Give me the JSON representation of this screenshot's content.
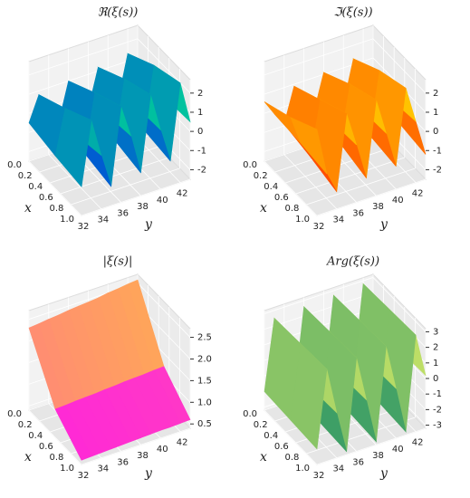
{
  "chart_data": [
    {
      "type": "surface",
      "title": "ℜ(ξ(s))",
      "x_label": "x",
      "y_label": "y",
      "xlim": [
        0,
        1
      ],
      "ylim": [
        32,
        43
      ],
      "zlim": [
        -2.5,
        2.7
      ],
      "xticks": [
        {
          "value": 0,
          "label": "0.0"
        },
        {
          "value": 0.2,
          "label": "0.2"
        },
        {
          "value": 0.4,
          "label": "0.4"
        },
        {
          "value": 0.6,
          "label": "0.6"
        },
        {
          "value": 0.8,
          "label": "0.8"
        },
        {
          "value": 1,
          "label": "1.0"
        }
      ],
      "yticks": [
        32,
        34,
        36,
        38,
        40,
        42
      ],
      "zticks": [
        -2,
        -1,
        0,
        1,
        2
      ],
      "colormap": [
        "#0000ff",
        "#00ff80"
      ],
      "grid": true,
      "surface_x": [
        0,
        0.5,
        1
      ],
      "surface_y": [
        32,
        33,
        34,
        35,
        36,
        37,
        38,
        39,
        40,
        41,
        42,
        43
      ],
      "z": [
        [
          -0.5,
          0.8,
          -0.3,
          -1,
          1,
          0.5,
          -0.8,
          1.2,
          0.3,
          -0.9,
          1.4,
          0.2
        ],
        [
          -0.8,
          1.5,
          0,
          -1.2,
          1.8,
          0.6,
          -1,
          2,
          0.5,
          -1,
          2.2,
          0.4
        ],
        [
          -1,
          2.3,
          0.3,
          -1.5,
          2.5,
          0.8,
          -1.3,
          2.6,
          0.6,
          -1.2,
          2.7,
          0.5
        ]
      ]
    },
    {
      "type": "surface",
      "title": "ℑ(ξ(s))",
      "x_label": "x",
      "y_label": "y",
      "xlim": [
        0,
        1
      ],
      "ylim": [
        32,
        43
      ],
      "zlim": [
        -2.5,
        2.7
      ],
      "xticks": [
        {
          "value": 0,
          "label": "0.0"
        },
        {
          "value": 0.2,
          "label": "0.2"
        },
        {
          "value": 0.4,
          "label": "0.4"
        },
        {
          "value": 0.6,
          "label": "0.6"
        },
        {
          "value": 0.8,
          "label": "0.8"
        },
        {
          "value": 1,
          "label": "1.0"
        }
      ],
      "yticks": [
        32,
        34,
        36,
        38,
        40,
        42
      ],
      "zticks": [
        -2,
        -1,
        0,
        1,
        2
      ],
      "colormap": [
        "#ff0000",
        "#ffff00"
      ],
      "grid": true,
      "surface_x": [
        0,
        0.5,
        1
      ],
      "surface_y": [
        32,
        33,
        34,
        35,
        36,
        37,
        38,
        39,
        40,
        41,
        42,
        43
      ],
      "z": [
        [
          0.6,
          -0.2,
          -0.9,
          0.9,
          0.3,
          -0.8,
          1.1,
          0.2,
          -0.9,
          1.3,
          0.4,
          -0.8
        ],
        [
          1.2,
          -0.3,
          -1.2,
          1.6,
          0.4,
          -1,
          1.9,
          0.5,
          -1.1,
          2.1,
          0.5,
          -1
        ],
        [
          2,
          -0.5,
          -1.6,
          2.3,
          0.5,
          -1.4,
          2.5,
          0.6,
          -1.3,
          2.6,
          0.7,
          -1.2
        ]
      ]
    },
    {
      "type": "surface",
      "title": "|ξ(s)|",
      "x_label": "x",
      "y_label": "y",
      "xlim": [
        0,
        1
      ],
      "ylim": [
        32,
        43
      ],
      "zlim": [
        0.4,
        2.7
      ],
      "xticks": [
        {
          "value": 0,
          "label": "0.0"
        },
        {
          "value": 0.2,
          "label": "0.2"
        },
        {
          "value": 0.4,
          "label": "0.4"
        },
        {
          "value": 0.6,
          "label": "0.6"
        },
        {
          "value": 0.8,
          "label": "0.8"
        },
        {
          "value": 1,
          "label": "1.0"
        }
      ],
      "yticks": [
        32,
        34,
        36,
        38,
        40,
        42
      ],
      "zticks": [
        0.5,
        {
          "value": 1,
          "label": "1.0"
        },
        1.5,
        {
          "value": 2,
          "label": "2.0"
        },
        2.5
      ],
      "colormap": [
        "#ff00ff",
        "#ffff00"
      ],
      "grid": true,
      "surface_x": [
        0,
        0.5,
        1
      ],
      "surface_y": [
        32,
        33,
        34,
        35,
        36,
        37,
        38,
        39,
        40,
        41,
        42,
        43
      ],
      "z": [
        [
          2.3,
          2.32,
          2.35,
          2.37,
          2.4,
          2.42,
          2.44,
          2.46,
          2.5,
          2.52,
          2.55,
          2.57
        ],
        [
          1.05,
          1.06,
          1.08,
          1.09,
          1.1,
          1.12,
          1.13,
          1.15,
          1.16,
          1.17,
          1.19,
          1.2
        ],
        [
          0.5,
          0.51,
          0.52,
          0.53,
          0.54,
          0.55,
          0.56,
          0.57,
          0.58,
          0.58,
          0.59,
          0.6
        ]
      ]
    },
    {
      "type": "surface",
      "title": "Arg(ξ(s))",
      "x_label": "x",
      "y_label": "y",
      "xlim": [
        0,
        1
      ],
      "ylim": [
        32,
        43
      ],
      "zlim": [
        -3.2,
        3.2
      ],
      "xticks": [
        {
          "value": 0,
          "label": "0.0"
        },
        {
          "value": 0.2,
          "label": "0.2"
        },
        {
          "value": 0.4,
          "label": "0.4"
        },
        {
          "value": 0.6,
          "label": "0.6"
        },
        {
          "value": 0.8,
          "label": "0.8"
        },
        {
          "value": 1,
          "label": "1.0"
        }
      ],
      "yticks": [
        32,
        34,
        36,
        38,
        40,
        42
      ],
      "zticks": [
        -3,
        -2,
        -1,
        0,
        1,
        2,
        3
      ],
      "colormap": [
        "#008066",
        "#ffff66"
      ],
      "grid": true,
      "surface_x": [
        0,
        0.5,
        1
      ],
      "surface_y": [
        32,
        33,
        34,
        35,
        36,
        37,
        38,
        39,
        40,
        41,
        42,
        43
      ],
      "z": [
        [
          -2,
          2.5,
          -0.5,
          -2.8,
          2.6,
          -0.3,
          -2.9,
          2.7,
          -0.2,
          -2.8,
          2.8,
          0
        ],
        [
          -2.1,
          2.6,
          -0.4,
          -2.9,
          2.7,
          -0.2,
          -2.9,
          2.8,
          -0.1,
          -2.9,
          2.9,
          0.1
        ],
        [
          -2.2,
          2.7,
          -0.3,
          -3,
          2.8,
          -0.1,
          -3,
          2.9,
          0,
          -3,
          3,
          0.2
        ]
      ]
    }
  ]
}
